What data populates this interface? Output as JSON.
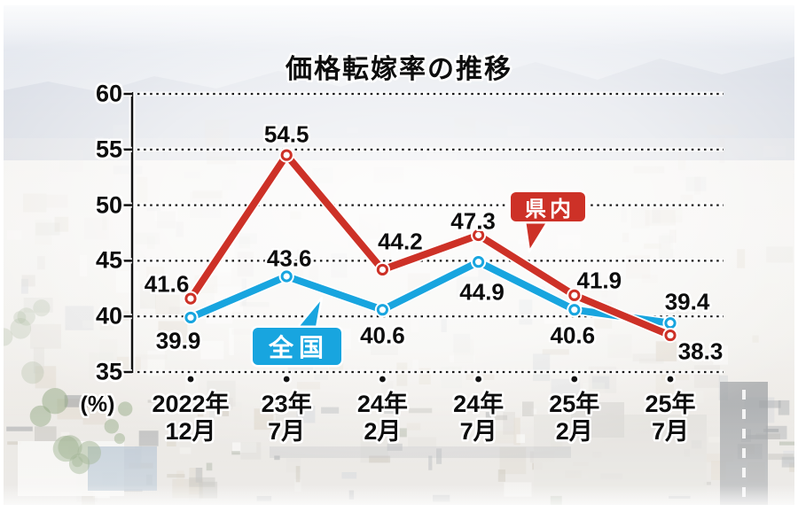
{
  "title": "価格転嫁率の推移",
  "y_axis": {
    "unit_label": "(%)"
  },
  "chart_data": {
    "type": "line",
    "title": "価格転嫁率の推移",
    "ylabel": "(%)",
    "ylim": [
      35,
      60
    ],
    "yticks": [
      35,
      40,
      45,
      50,
      55,
      60
    ],
    "grid": "horizontal-dotted",
    "legend_position": "inline-callout-badges",
    "categories": [
      {
        "line1": "2022年",
        "line2": "12月"
      },
      {
        "line1": "23年",
        "line2": "7月"
      },
      {
        "line1": "24年",
        "line2": "2月"
      },
      {
        "line1": "24年",
        "line2": "7月"
      },
      {
        "line1": "25年",
        "line2": "2月"
      },
      {
        "line1": "25年",
        "line2": "7月"
      }
    ],
    "series": [
      {
        "name": "県内",
        "color": "#cd3127",
        "values": [
          41.6,
          54.5,
          44.2,
          47.3,
          41.9,
          38.3
        ],
        "label_offsets": [
          [
            -27,
            -16
          ],
          [
            0,
            -23
          ],
          [
            20,
            -31
          ],
          [
            -6,
            -16
          ],
          [
            28,
            -16
          ],
          [
            34,
            18
          ]
        ]
      },
      {
        "name": "全国",
        "color": "#18a5df",
        "values": [
          39.9,
          43.6,
          40.6,
          44.9,
          40.6,
          39.4
        ],
        "label_offsets": [
          [
            -14,
            27
          ],
          [
            3,
            -20
          ],
          [
            0,
            29
          ],
          [
            4,
            34
          ],
          [
            -2,
            29
          ],
          [
            19,
            -24
          ]
        ]
      }
    ]
  }
}
